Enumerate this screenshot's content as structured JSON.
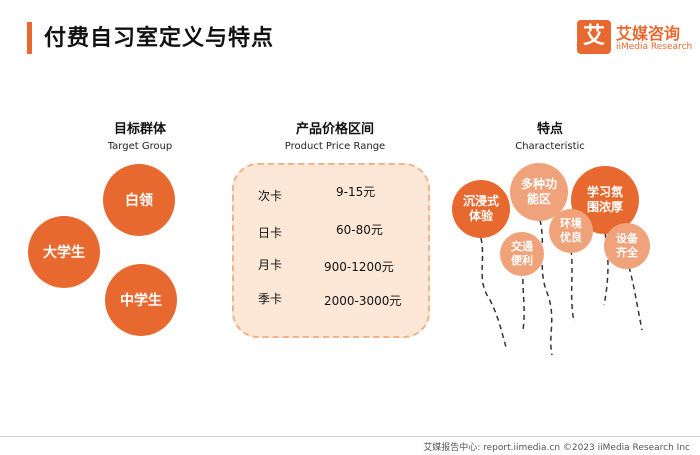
{
  "page": {
    "title": "付费自习室定义与特点"
  },
  "logo": {
    "mark": "艾",
    "name_cn": "艾媒咨询",
    "name_en": "iiMedia Research"
  },
  "sections": {
    "target": {
      "title": "目标群体",
      "subtitle": "Target Group",
      "groups": [
        "白领",
        "大学生",
        "中学生"
      ]
    },
    "price": {
      "title": "产品价格区间",
      "subtitle": "Product Price Range",
      "rows": [
        {
          "label": "次卡",
          "value": "9-15元"
        },
        {
          "label": "日卡",
          "value": "60-80元"
        },
        {
          "label": "月卡",
          "value": "900-1200元"
        },
        {
          "label": "季卡",
          "value": "2000-3000元"
        }
      ]
    },
    "features": {
      "title": "特点",
      "subtitle": "Characteristic",
      "items": [
        {
          "line1": "沉浸式",
          "line2": "体验"
        },
        {
          "line1": "多种功",
          "line2": "能区"
        },
        {
          "line1": "学习氛",
          "line2": "围浓厚"
        },
        {
          "line1": "交通",
          "line2": "便利"
        },
        {
          "line1": "环境",
          "line2": "优良"
        },
        {
          "line1": "设备",
          "line2": "齐全"
        }
      ]
    }
  },
  "footer": {
    "text": "艾媒报告中心: report.iimedia.cn  ©2023  iiMedia Research  Inc"
  },
  "colors": {
    "accent": "#e8692f",
    "light_accent": "#f0a27b",
    "price_bg": "#fde8d8"
  }
}
